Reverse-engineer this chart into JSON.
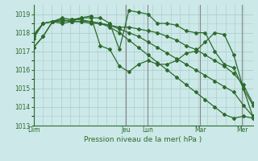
{
  "bg_color": "#cce8e8",
  "grid_color": "#aad0cc",
  "line_color": "#2d6b2d",
  "ylabel": "Pression niveau de la mer( hPa )",
  "ylim": [
    1013,
    1019.5
  ],
  "yticks": [
    1013,
    1014,
    1015,
    1016,
    1017,
    1018,
    1019
  ],
  "day_labels": [
    "Dim",
    "Jeu",
    "Lun",
    "Mar",
    "Mer"
  ],
  "day_positions": [
    0.0,
    0.42,
    0.52,
    0.76,
    0.95
  ],
  "n_points": 24,
  "series": [
    [
      1017.2,
      1017.8,
      1018.6,
      1018.6,
      1018.7,
      1018.8,
      1018.8,
      1018.8,
      1018.5,
      1017.1,
      1019.2,
      1019.1,
      1019.0,
      1018.5,
      1018.5,
      1018.4,
      1018.1,
      1018.0,
      1018.0,
      1017.0,
      1016.3,
      1016.1,
      1015.0,
      1014.1
    ],
    [
      1017.7,
      1018.5,
      1018.6,
      1018.7,
      1018.6,
      1018.6,
      1018.5,
      1018.5,
      1018.4,
      1018.3,
      1018.3,
      1018.2,
      1018.1,
      1018.0,
      1017.8,
      1017.6,
      1017.3,
      1017.1,
      1016.8,
      1016.5,
      1016.2,
      1015.8,
      1015.2,
      1014.2
    ],
    [
      1017.8,
      1018.5,
      1018.6,
      1018.7,
      1018.6,
      1018.6,
      1018.6,
      1018.5,
      1018.4,
      1018.2,
      1018.0,
      1017.8,
      1017.5,
      1017.2,
      1016.9,
      1016.6,
      1016.3,
      1016.0,
      1015.7,
      1015.4,
      1015.1,
      1014.8,
      1014.1,
      1013.5
    ],
    [
      1017.9,
      1018.5,
      1018.6,
      1018.8,
      1018.7,
      1018.7,
      1018.6,
      1018.5,
      1018.3,
      1018.0,
      1017.6,
      1017.2,
      1016.8,
      1016.4,
      1016.0,
      1015.6,
      1015.2,
      1014.8,
      1014.4,
      1014.0,
      1013.6,
      1013.4,
      1013.5,
      1013.4
    ],
    [
      1017.2,
      1017.8,
      1018.6,
      1018.5,
      1018.6,
      1018.8,
      1018.9,
      1017.3,
      1017.1,
      1016.2,
      1015.9,
      1016.3,
      1016.5,
      1016.3,
      1016.3,
      1016.5,
      1016.9,
      1017.0,
      1017.5,
      1018.0,
      1017.9,
      1016.8,
      1015.0,
      1013.5
    ]
  ]
}
